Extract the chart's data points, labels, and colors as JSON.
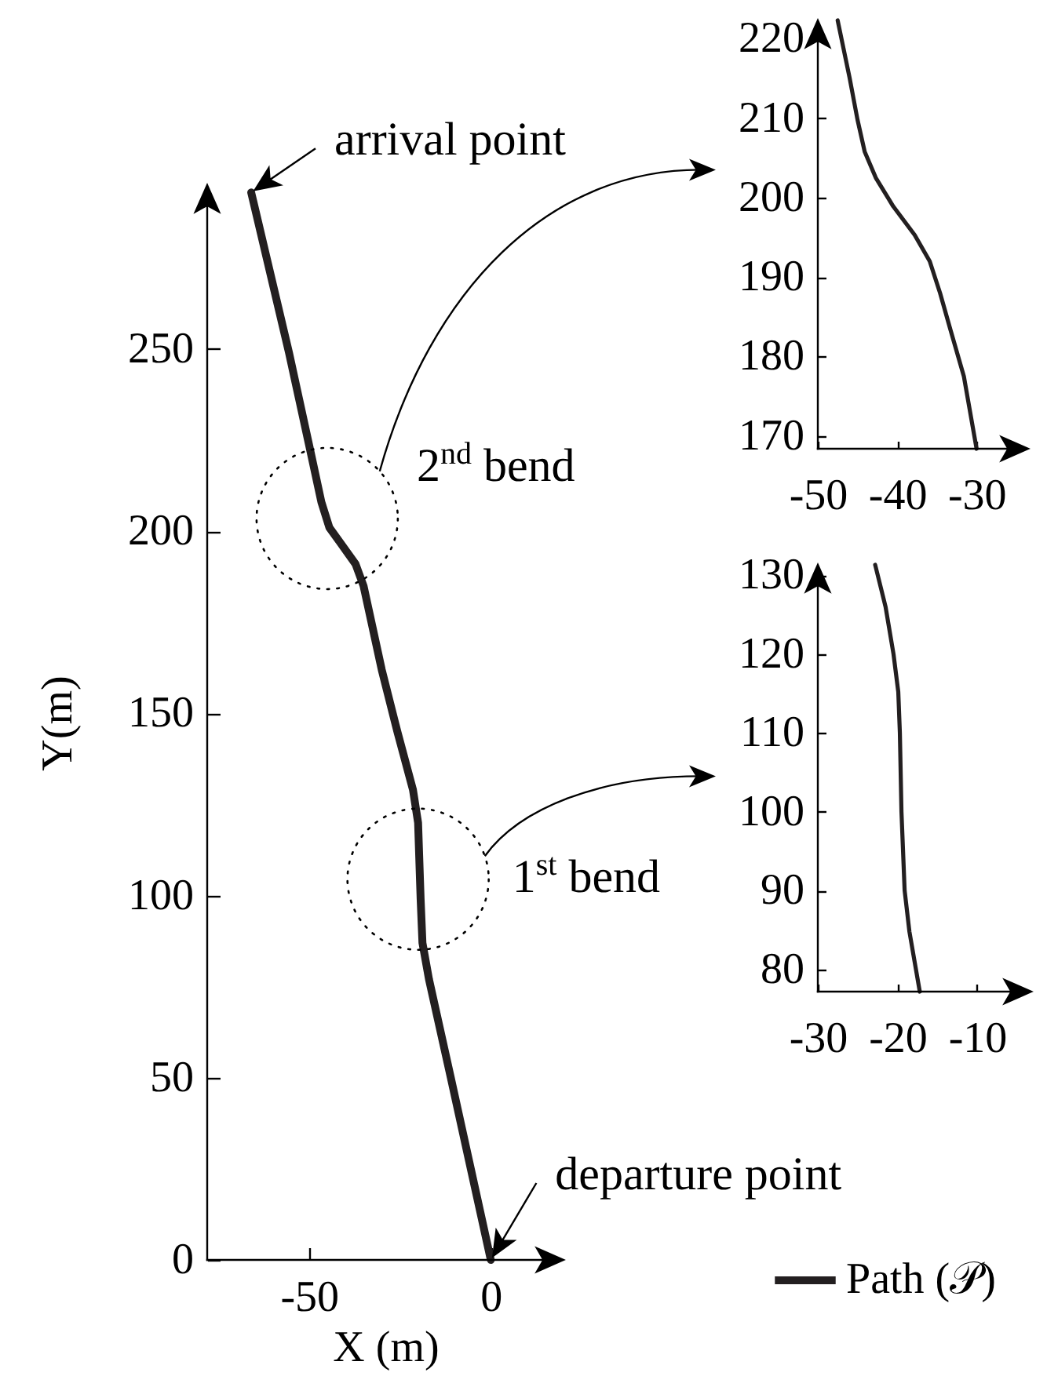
{
  "chart_data": [
    {
      "type": "line",
      "xlabel": "X (m)",
      "ylabel": "Y(m)",
      "x": [
        0,
        -5.5,
        -11,
        -17,
        -18.8,
        -19.3,
        -20,
        -21.4,
        -25.7,
        -30,
        -35,
        -37.2,
        -41.5,
        -44.4,
        -46.6,
        -49.4,
        -55.5,
        -65.9
      ],
      "series": [
        {
          "name": "Path (𝒫)",
          "color": "#231f20",
          "values": [
            0,
            25,
            50,
            77,
            87,
            99,
            120,
            129,
            145,
            162,
            185,
            191,
            197,
            201,
            208,
            221,
            249,
            293
          ]
        }
      ],
      "xlim": [
        -78,
        20
      ],
      "ylim": [
        0,
        295
      ],
      "xticks": [
        -50,
        0
      ],
      "yticks": [
        0,
        50,
        100,
        150,
        200,
        250
      ],
      "legend": "bottom right",
      "annotations": [
        {
          "text": "arrival point",
          "x": -65.9,
          "y": 293
        },
        {
          "text": "2$^{nd}$ bend",
          "x": -45,
          "y": 203.5
        },
        {
          "text": "1$^{st}$ bend",
          "x": -20,
          "y": 104.5
        },
        {
          "text": "departure point",
          "x": 0,
          "y": 0
        }
      ]
    },
    {
      "type": "line",
      "x": [
        -30,
        -31.6,
        -33.3,
        -34.6,
        -35.9,
        -37.8,
        -40.5,
        -42.7,
        -44.1,
        -45,
        -46,
        -47.5
      ],
      "series": [
        {
          "color": "#231f20",
          "values": [
            168.4,
            177.5,
            183.4,
            188,
            192,
            195.3,
            198.9,
            202.5,
            205.8,
            209.8,
            215.1,
            222.3
          ]
        }
      ],
      "xlim": [
        -50,
        -23.5
      ],
      "ylim": [
        168.4,
        222.3
      ],
      "xticks": [
        -50,
        -40,
        -30
      ],
      "yticks": [
        170,
        180,
        190,
        200,
        210,
        220
      ]
    },
    {
      "type": "line",
      "x": [
        -17.2,
        -18.5,
        -19.1,
        -19.5,
        -19.7,
        -19.9,
        -20.5,
        -21.5,
        -22.8
      ],
      "series": [
        {
          "color": "#231f20",
          "values": [
            77.2,
            84.8,
            90,
            100,
            110,
            115.2,
            120,
            126,
            131.3
          ]
        }
      ],
      "xlim": [
        -30,
        -3.2
      ],
      "ylim": [
        77.2,
        131.3
      ],
      "xticks": [
        -30,
        -20,
        -10
      ],
      "yticks": [
        80,
        90,
        100,
        110,
        120,
        130
      ]
    }
  ]
}
